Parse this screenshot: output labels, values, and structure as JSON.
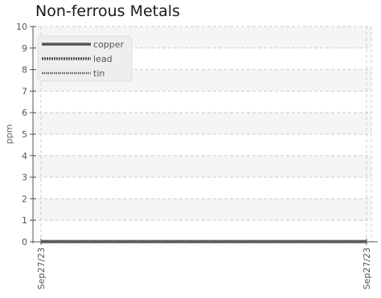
{
  "chart_data": {
    "type": "line",
    "title": "Non-ferrous Metals",
    "ylabel": "ppm",
    "xlabel": "",
    "ylim": [
      0,
      10
    ],
    "yticks": [
      0,
      1,
      2,
      3,
      4,
      5,
      6,
      7,
      8,
      9,
      10
    ],
    "x": [
      "Sep27/23",
      "Sep27/23"
    ],
    "grid": true,
    "legend_position": "top-left",
    "series": [
      {
        "name": "copper",
        "values": [
          0,
          0
        ],
        "color": "#555555",
        "style": "solid"
      },
      {
        "name": "lead",
        "values": [
          0,
          0
        ],
        "color": "#555555",
        "style": "dotted-thick"
      },
      {
        "name": "tin",
        "values": [
          0,
          0
        ],
        "color": "#666666",
        "style": "dotted-thin"
      }
    ]
  }
}
